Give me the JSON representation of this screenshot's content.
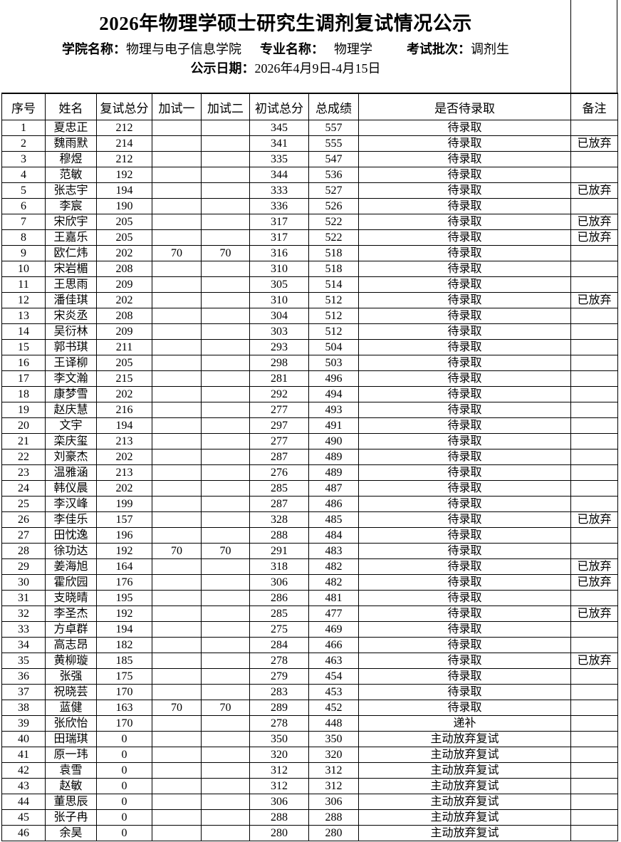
{
  "header": {
    "title": "2026年物理学硕士研究生调剂复试情况公示",
    "fields": [
      {
        "label": "学院名称：",
        "value": "物理与电子信息学院"
      },
      {
        "label": "专业名称：",
        "value": "物理学"
      },
      {
        "label": "考试批次：",
        "value": "调剂生"
      }
    ],
    "date_label": "公示日期：",
    "date_value": "2026年4月9日-4月15日"
  },
  "table": {
    "columns": [
      "序号",
      "姓名",
      "复试总分",
      "加试一",
      "加试二",
      "初试总分",
      "总成绩",
      "是否待录取",
      "备注"
    ],
    "column_keys": [
      "no",
      "name",
      "retest_total",
      "extra_test_1",
      "extra_test_2",
      "initial_total",
      "total_score",
      "status",
      "note"
    ],
    "rows": [
      [
        "1",
        "夏忠正",
        "212",
        "",
        "",
        "345",
        "557",
        "待录取",
        ""
      ],
      [
        "2",
        "魏雨默",
        "214",
        "",
        "",
        "341",
        "555",
        "待录取",
        "已放弃"
      ],
      [
        "3",
        "穆煜",
        "212",
        "",
        "",
        "335",
        "547",
        "待录取",
        ""
      ],
      [
        "4",
        "范敏",
        "192",
        "",
        "",
        "344",
        "536",
        "待录取",
        ""
      ],
      [
        "5",
        "张志宇",
        "194",
        "",
        "",
        "333",
        "527",
        "待录取",
        "已放弃"
      ],
      [
        "6",
        "李宸",
        "190",
        "",
        "",
        "336",
        "526",
        "待录取",
        ""
      ],
      [
        "7",
        "宋欣宇",
        "205",
        "",
        "",
        "317",
        "522",
        "待录取",
        "已放弃"
      ],
      [
        "8",
        "王嘉乐",
        "205",
        "",
        "",
        "317",
        "522",
        "待录取",
        "已放弃"
      ],
      [
        "9",
        "欧仁炜",
        "202",
        "70",
        "70",
        "316",
        "518",
        "待录取",
        ""
      ],
      [
        "10",
        "宋岩楣",
        "208",
        "",
        "",
        "310",
        "518",
        "待录取",
        ""
      ],
      [
        "11",
        "王思雨",
        "209",
        "",
        "",
        "305",
        "514",
        "待录取",
        ""
      ],
      [
        "12",
        "潘佳琪",
        "202",
        "",
        "",
        "310",
        "512",
        "待录取",
        "已放弃"
      ],
      [
        "13",
        "宋炎丞",
        "208",
        "",
        "",
        "304",
        "512",
        "待录取",
        ""
      ],
      [
        "14",
        "吴衍林",
        "209",
        "",
        "",
        "303",
        "512",
        "待录取",
        ""
      ],
      [
        "15",
        "郭书琪",
        "211",
        "",
        "",
        "293",
        "504",
        "待录取",
        ""
      ],
      [
        "16",
        "王译柳",
        "205",
        "",
        "",
        "298",
        "503",
        "待录取",
        ""
      ],
      [
        "17",
        "李文瀚",
        "215",
        "",
        "",
        "281",
        "496",
        "待录取",
        ""
      ],
      [
        "18",
        "康梦雪",
        "202",
        "",
        "",
        "292",
        "494",
        "待录取",
        ""
      ],
      [
        "19",
        "赵庆慧",
        "216",
        "",
        "",
        "277",
        "493",
        "待录取",
        ""
      ],
      [
        "20",
        "文宇",
        "194",
        "",
        "",
        "297",
        "491",
        "待录取",
        ""
      ],
      [
        "21",
        "栾庆玺",
        "213",
        "",
        "",
        "277",
        "490",
        "待录取",
        ""
      ],
      [
        "22",
        "刘豪杰",
        "202",
        "",
        "",
        "287",
        "489",
        "待录取",
        ""
      ],
      [
        "23",
        "温雅涵",
        "213",
        "",
        "",
        "276",
        "489",
        "待录取",
        ""
      ],
      [
        "24",
        "韩仪晨",
        "202",
        "",
        "",
        "285",
        "487",
        "待录取",
        ""
      ],
      [
        "25",
        "李汉峰",
        "199",
        "",
        "",
        "287",
        "486",
        "待录取",
        ""
      ],
      [
        "26",
        "李佳乐",
        "157",
        "",
        "",
        "328",
        "485",
        "待录取",
        "已放弃"
      ],
      [
        "27",
        "田忱逸",
        "196",
        "",
        "",
        "288",
        "484",
        "待录取",
        ""
      ],
      [
        "28",
        "徐功达",
        "192",
        "70",
        "70",
        "291",
        "483",
        "待录取",
        ""
      ],
      [
        "29",
        "姜海旭",
        "164",
        "",
        "",
        "318",
        "482",
        "待录取",
        "已放弃"
      ],
      [
        "30",
        "霍欣园",
        "176",
        "",
        "",
        "306",
        "482",
        "待录取",
        "已放弃"
      ],
      [
        "31",
        "支晓晴",
        "195",
        "",
        "",
        "286",
        "481",
        "待录取",
        ""
      ],
      [
        "32",
        "李圣杰",
        "192",
        "",
        "",
        "285",
        "477",
        "待录取",
        "已放弃"
      ],
      [
        "33",
        "方卓群",
        "194",
        "",
        "",
        "275",
        "469",
        "待录取",
        ""
      ],
      [
        "34",
        "高志昂",
        "182",
        "",
        "",
        "284",
        "466",
        "待录取",
        ""
      ],
      [
        "35",
        "黄柳璇",
        "185",
        "",
        "",
        "278",
        "463",
        "待录取",
        "已放弃"
      ],
      [
        "36",
        "张强",
        "175",
        "",
        "",
        "279",
        "454",
        "待录取",
        ""
      ],
      [
        "37",
        "祝晓芸",
        "170",
        "",
        "",
        "283",
        "453",
        "待录取",
        ""
      ],
      [
        "38",
        "蓝健",
        "163",
        "70",
        "70",
        "289",
        "452",
        "待录取",
        ""
      ],
      [
        "39",
        "张欣怡",
        "170",
        "",
        "",
        "278",
        "448",
        "递补",
        ""
      ],
      [
        "40",
        "田瑞琪",
        "0",
        "",
        "",
        "350",
        "350",
        "主动放弃复试",
        ""
      ],
      [
        "41",
        "原一玮",
        "0",
        "",
        "",
        "320",
        "320",
        "主动放弃复试",
        ""
      ],
      [
        "42",
        "袁雪",
        "0",
        "",
        "",
        "312",
        "312",
        "主动放弃复试",
        ""
      ],
      [
        "43",
        "赵敏",
        "0",
        "",
        "",
        "312",
        "312",
        "主动放弃复试",
        ""
      ],
      [
        "44",
        "董思辰",
        "0",
        "",
        "",
        "306",
        "306",
        "主动放弃复试",
        ""
      ],
      [
        "45",
        "张子冉",
        "0",
        "",
        "",
        "288",
        "288",
        "主动放弃复试",
        ""
      ],
      [
        "46",
        "余昊",
        "0",
        "",
        "",
        "280",
        "280",
        "主动放弃复试",
        ""
      ]
    ]
  },
  "colors": {
    "text": "#000000",
    "border": "#000000",
    "background": "#ffffff"
  }
}
